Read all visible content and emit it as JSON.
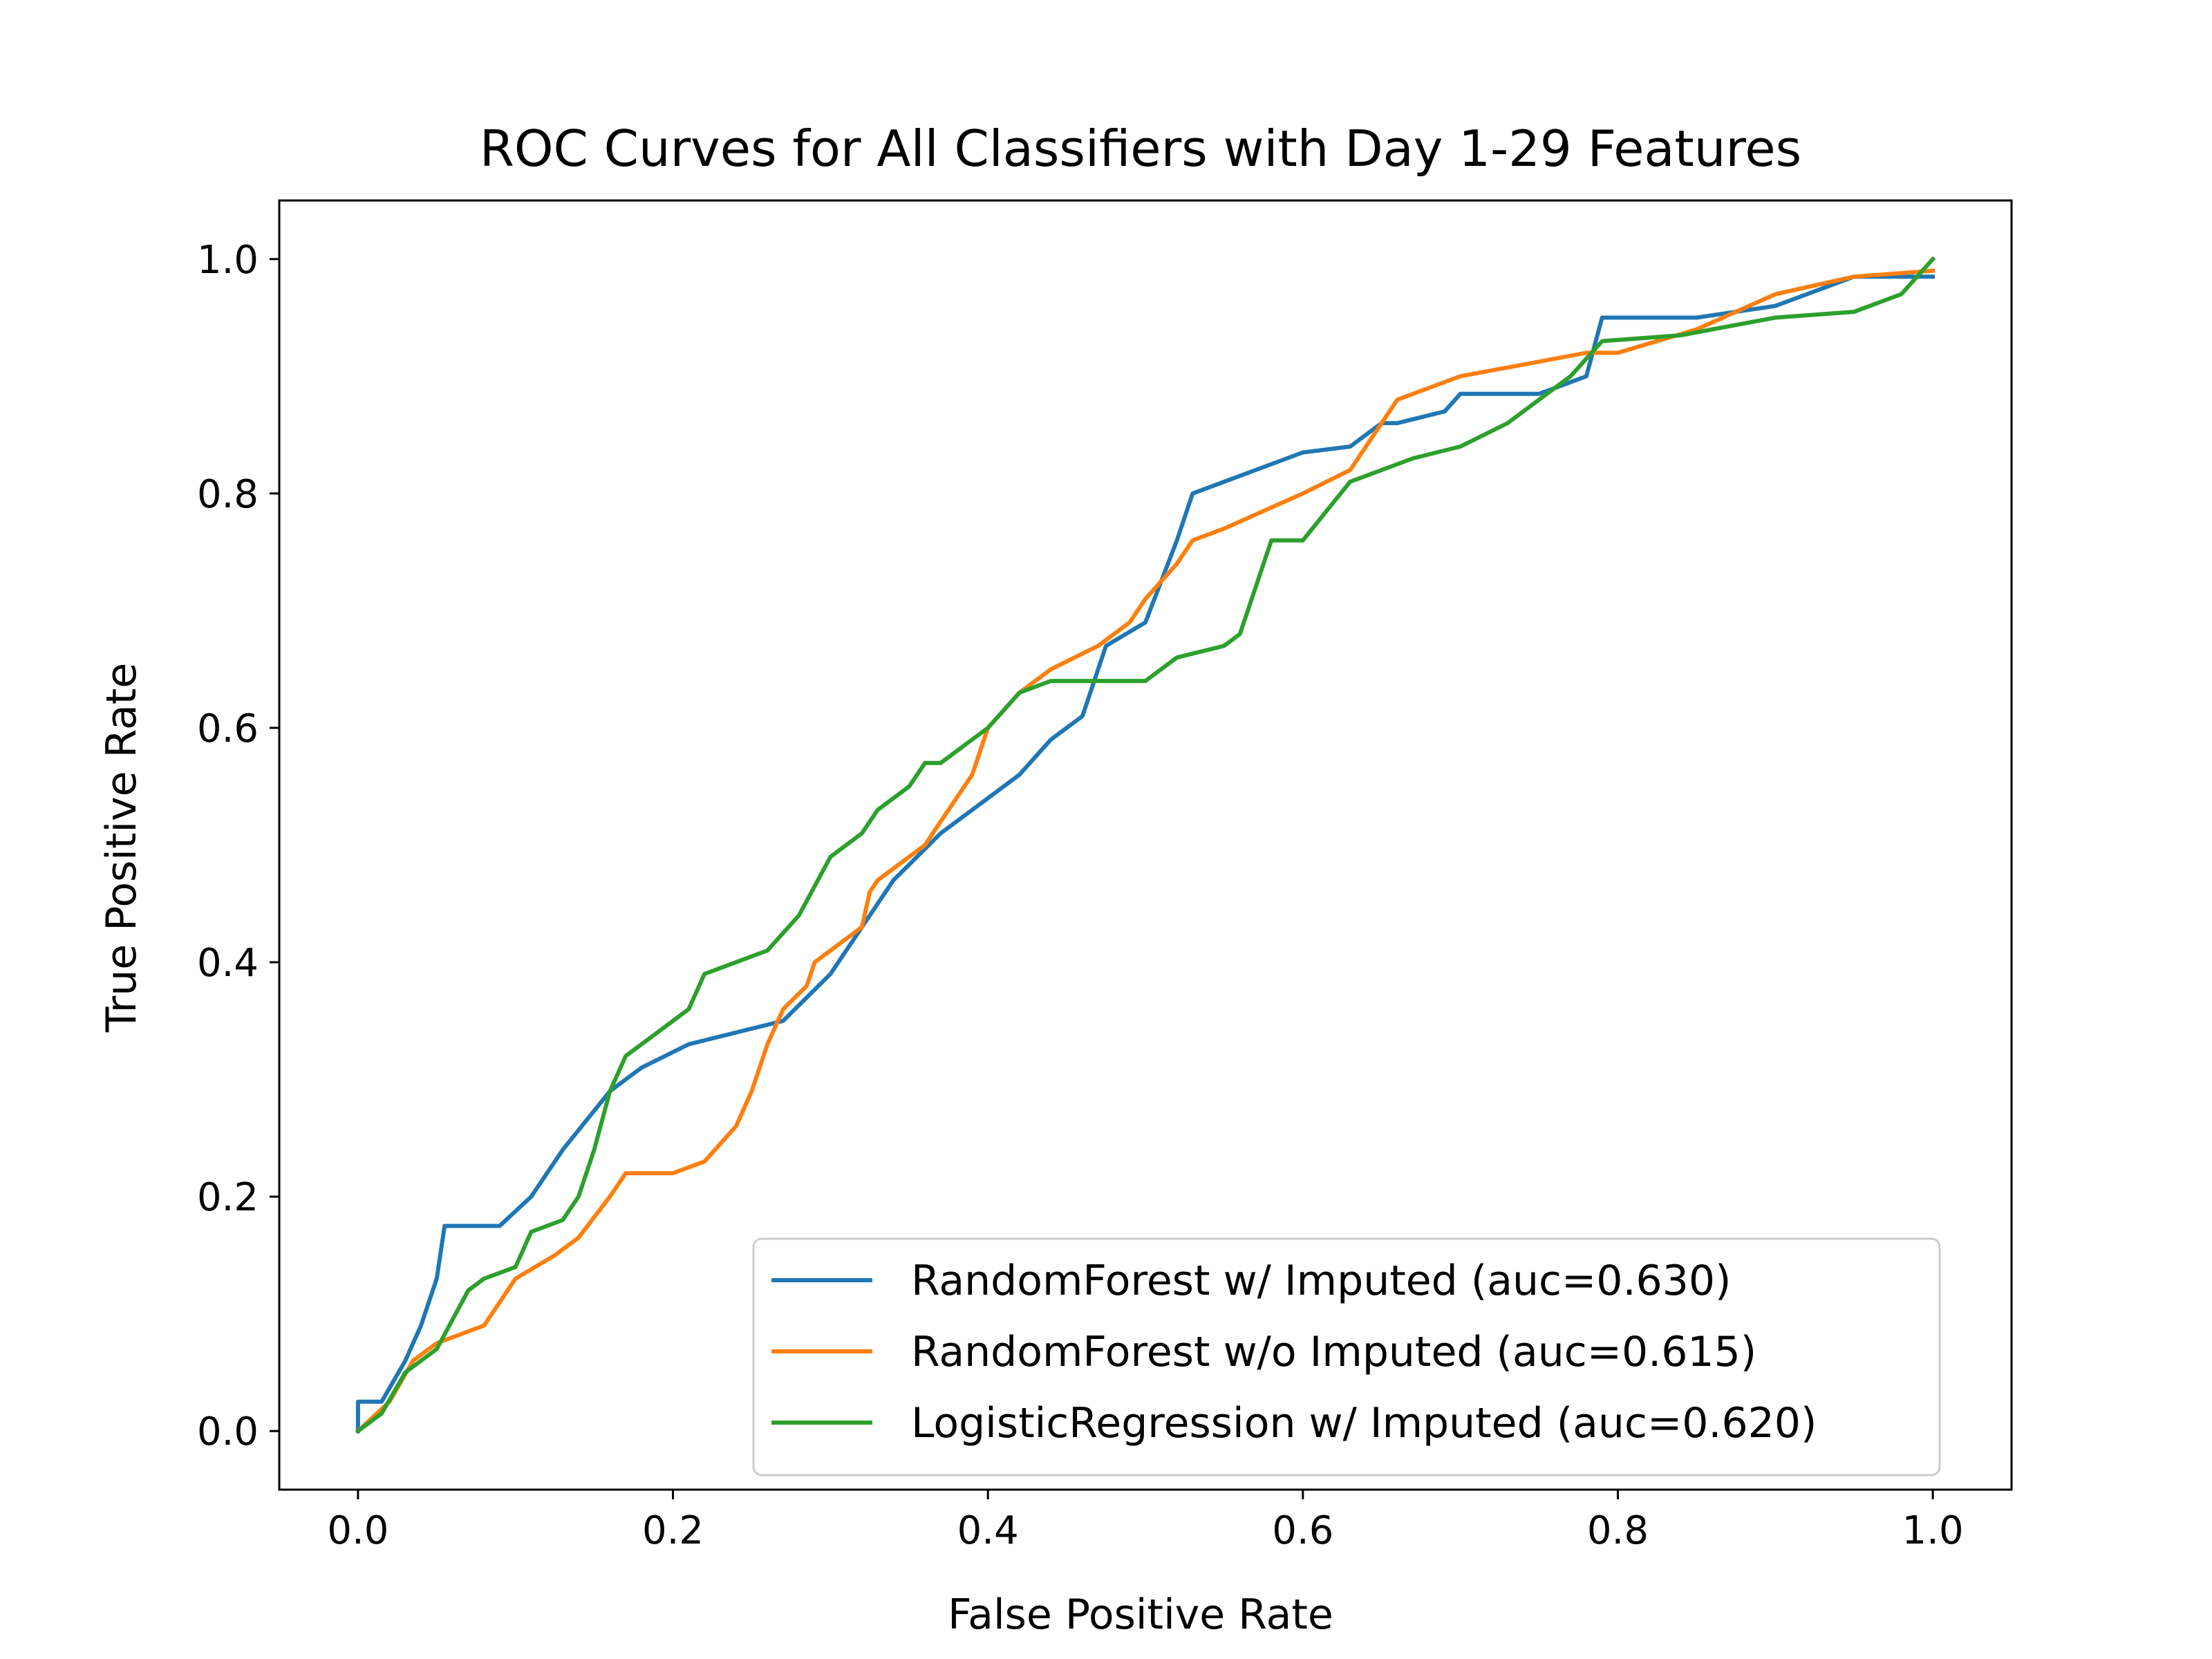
{
  "chart_data": {
    "type": "line",
    "title": "ROC Curves for All Classifiers with Day 1-29 Features",
    "xlabel": "False Positive Rate",
    "ylabel": "True Positive Rate",
    "xlim": [
      -0.05,
      1.05
    ],
    "ylim": [
      -0.05,
      1.05
    ],
    "xticks": [
      0.0,
      0.2,
      0.4,
      0.6,
      0.8,
      1.0
    ],
    "yticks": [
      0.0,
      0.2,
      0.4,
      0.6,
      0.8,
      1.0
    ],
    "xtick_labels": [
      "0.0",
      "0.2",
      "0.4",
      "0.6",
      "0.8",
      "1.0"
    ],
    "ytick_labels": [
      "0.0",
      "0.2",
      "0.4",
      "0.6",
      "0.8",
      "1.0"
    ],
    "grid": false,
    "legend_position": "lower-right",
    "series": [
      {
        "name": "RandomForest w/ Imputed (auc=0.630)",
        "color": "#1f77b4",
        "x": [
          0.0,
          0.0,
          0.015,
          0.03,
          0.04,
          0.05,
          0.055,
          0.09,
          0.11,
          0.13,
          0.16,
          0.18,
          0.21,
          0.27,
          0.3,
          0.34,
          0.37,
          0.4,
          0.42,
          0.44,
          0.46,
          0.475,
          0.5,
          0.52,
          0.53,
          0.56,
          0.6,
          0.63,
          0.65,
          0.66,
          0.69,
          0.7,
          0.75,
          0.78,
          0.79,
          0.85,
          0.9,
          0.93,
          0.95,
          0.97,
          1.0
        ],
        "y": [
          0.0,
          0.025,
          0.025,
          0.06,
          0.09,
          0.13,
          0.175,
          0.175,
          0.2,
          0.24,
          0.29,
          0.31,
          0.33,
          0.35,
          0.39,
          0.47,
          0.51,
          0.54,
          0.56,
          0.59,
          0.61,
          0.67,
          0.69,
          0.76,
          0.8,
          0.815,
          0.835,
          0.84,
          0.86,
          0.86,
          0.87,
          0.885,
          0.885,
          0.9,
          0.95,
          0.95,
          0.96,
          0.975,
          0.985,
          0.985,
          0.985
        ]
      },
      {
        "name": "RandomForest w/o Imputed (auc=0.615)",
        "color": "#ff7f0e",
        "x": [
          0.0,
          0.02,
          0.035,
          0.05,
          0.08,
          0.1,
          0.125,
          0.14,
          0.16,
          0.17,
          0.2,
          0.22,
          0.24,
          0.25,
          0.26,
          0.27,
          0.285,
          0.29,
          0.31,
          0.32,
          0.325,
          0.33,
          0.36,
          0.37,
          0.39,
          0.4,
          0.42,
          0.44,
          0.47,
          0.49,
          0.5,
          0.52,
          0.53,
          0.55,
          0.6,
          0.63,
          0.66,
          0.7,
          0.74,
          0.78,
          0.8,
          0.85,
          0.9,
          0.95,
          1.0
        ],
        "y": [
          0.0,
          0.025,
          0.06,
          0.075,
          0.09,
          0.13,
          0.15,
          0.165,
          0.2,
          0.22,
          0.22,
          0.23,
          0.26,
          0.29,
          0.33,
          0.36,
          0.38,
          0.4,
          0.42,
          0.43,
          0.46,
          0.47,
          0.5,
          0.52,
          0.56,
          0.6,
          0.63,
          0.65,
          0.67,
          0.69,
          0.71,
          0.74,
          0.76,
          0.77,
          0.8,
          0.82,
          0.88,
          0.9,
          0.91,
          0.92,
          0.92,
          0.94,
          0.97,
          0.985,
          0.99
        ]
      },
      {
        "name": "LogisticRegression w/ Imputed (auc=0.620)",
        "color": "#2ca02c",
        "x": [
          0.0,
          0.015,
          0.03,
          0.05,
          0.07,
          0.08,
          0.1,
          0.11,
          0.13,
          0.14,
          0.15,
          0.16,
          0.17,
          0.19,
          0.21,
          0.22,
          0.26,
          0.28,
          0.3,
          0.32,
          0.33,
          0.35,
          0.36,
          0.37,
          0.4,
          0.42,
          0.44,
          0.46,
          0.5,
          0.52,
          0.55,
          0.56,
          0.57,
          0.58,
          0.6,
          0.63,
          0.67,
          0.7,
          0.73,
          0.75,
          0.77,
          0.79,
          0.84,
          0.9,
          0.95,
          0.98,
          1.0
        ],
        "y": [
          0.0,
          0.015,
          0.05,
          0.07,
          0.12,
          0.13,
          0.14,
          0.17,
          0.18,
          0.2,
          0.24,
          0.29,
          0.32,
          0.34,
          0.36,
          0.39,
          0.41,
          0.44,
          0.49,
          0.51,
          0.53,
          0.55,
          0.57,
          0.57,
          0.6,
          0.63,
          0.64,
          0.64,
          0.64,
          0.66,
          0.67,
          0.68,
          0.72,
          0.76,
          0.76,
          0.81,
          0.83,
          0.84,
          0.86,
          0.88,
          0.9,
          0.93,
          0.935,
          0.95,
          0.955,
          0.97,
          1.0
        ]
      }
    ]
  }
}
